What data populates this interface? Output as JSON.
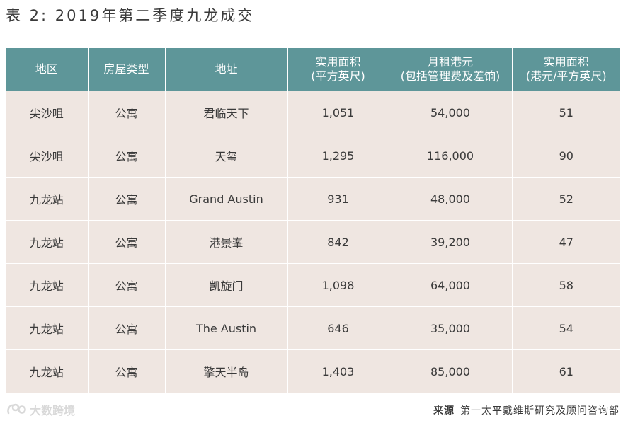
{
  "title": "表 2: 2019年第二季度九龙成交",
  "table": {
    "headers": [
      [
        "地区"
      ],
      [
        "房屋类型"
      ],
      [
        "地址"
      ],
      [
        "实用面积",
        "(平方英尺)"
      ],
      [
        "月租港元",
        "(包括管理费及差饷)"
      ],
      [
        "实用面积",
        "(港元/平方英尺)"
      ]
    ],
    "rows": [
      [
        "尖沙咀",
        "公寓",
        "君临天下",
        "1,051",
        "54,000",
        "51"
      ],
      [
        "尖沙咀",
        "公寓",
        "天玺",
        "1,295",
        "116,000",
        "90"
      ],
      [
        "九龙站",
        "公寓",
        "Grand Austin",
        "931",
        "48,000",
        "52"
      ],
      [
        "九龙站",
        "公寓",
        "港景峯",
        "842",
        "39,200",
        "47"
      ],
      [
        "九龙站",
        "公寓",
        "凯旋门",
        "1,098",
        "64,000",
        "58"
      ],
      [
        "九龙站",
        "公寓",
        "The Austin",
        "646",
        "35,000",
        "54"
      ],
      [
        "九龙站",
        "公寓",
        "擎天半岛",
        "1,403",
        "85,000",
        "61"
      ]
    ]
  },
  "source": {
    "label": "来源",
    "text": "第一太平戴维斯研究及顾问咨询部"
  },
  "watermark": {
    "text": "大数跨境",
    "icon": "brand-logo-icon"
  },
  "colors": {
    "header_bg": "#5e9699",
    "row_bg": "#efe6e1"
  }
}
